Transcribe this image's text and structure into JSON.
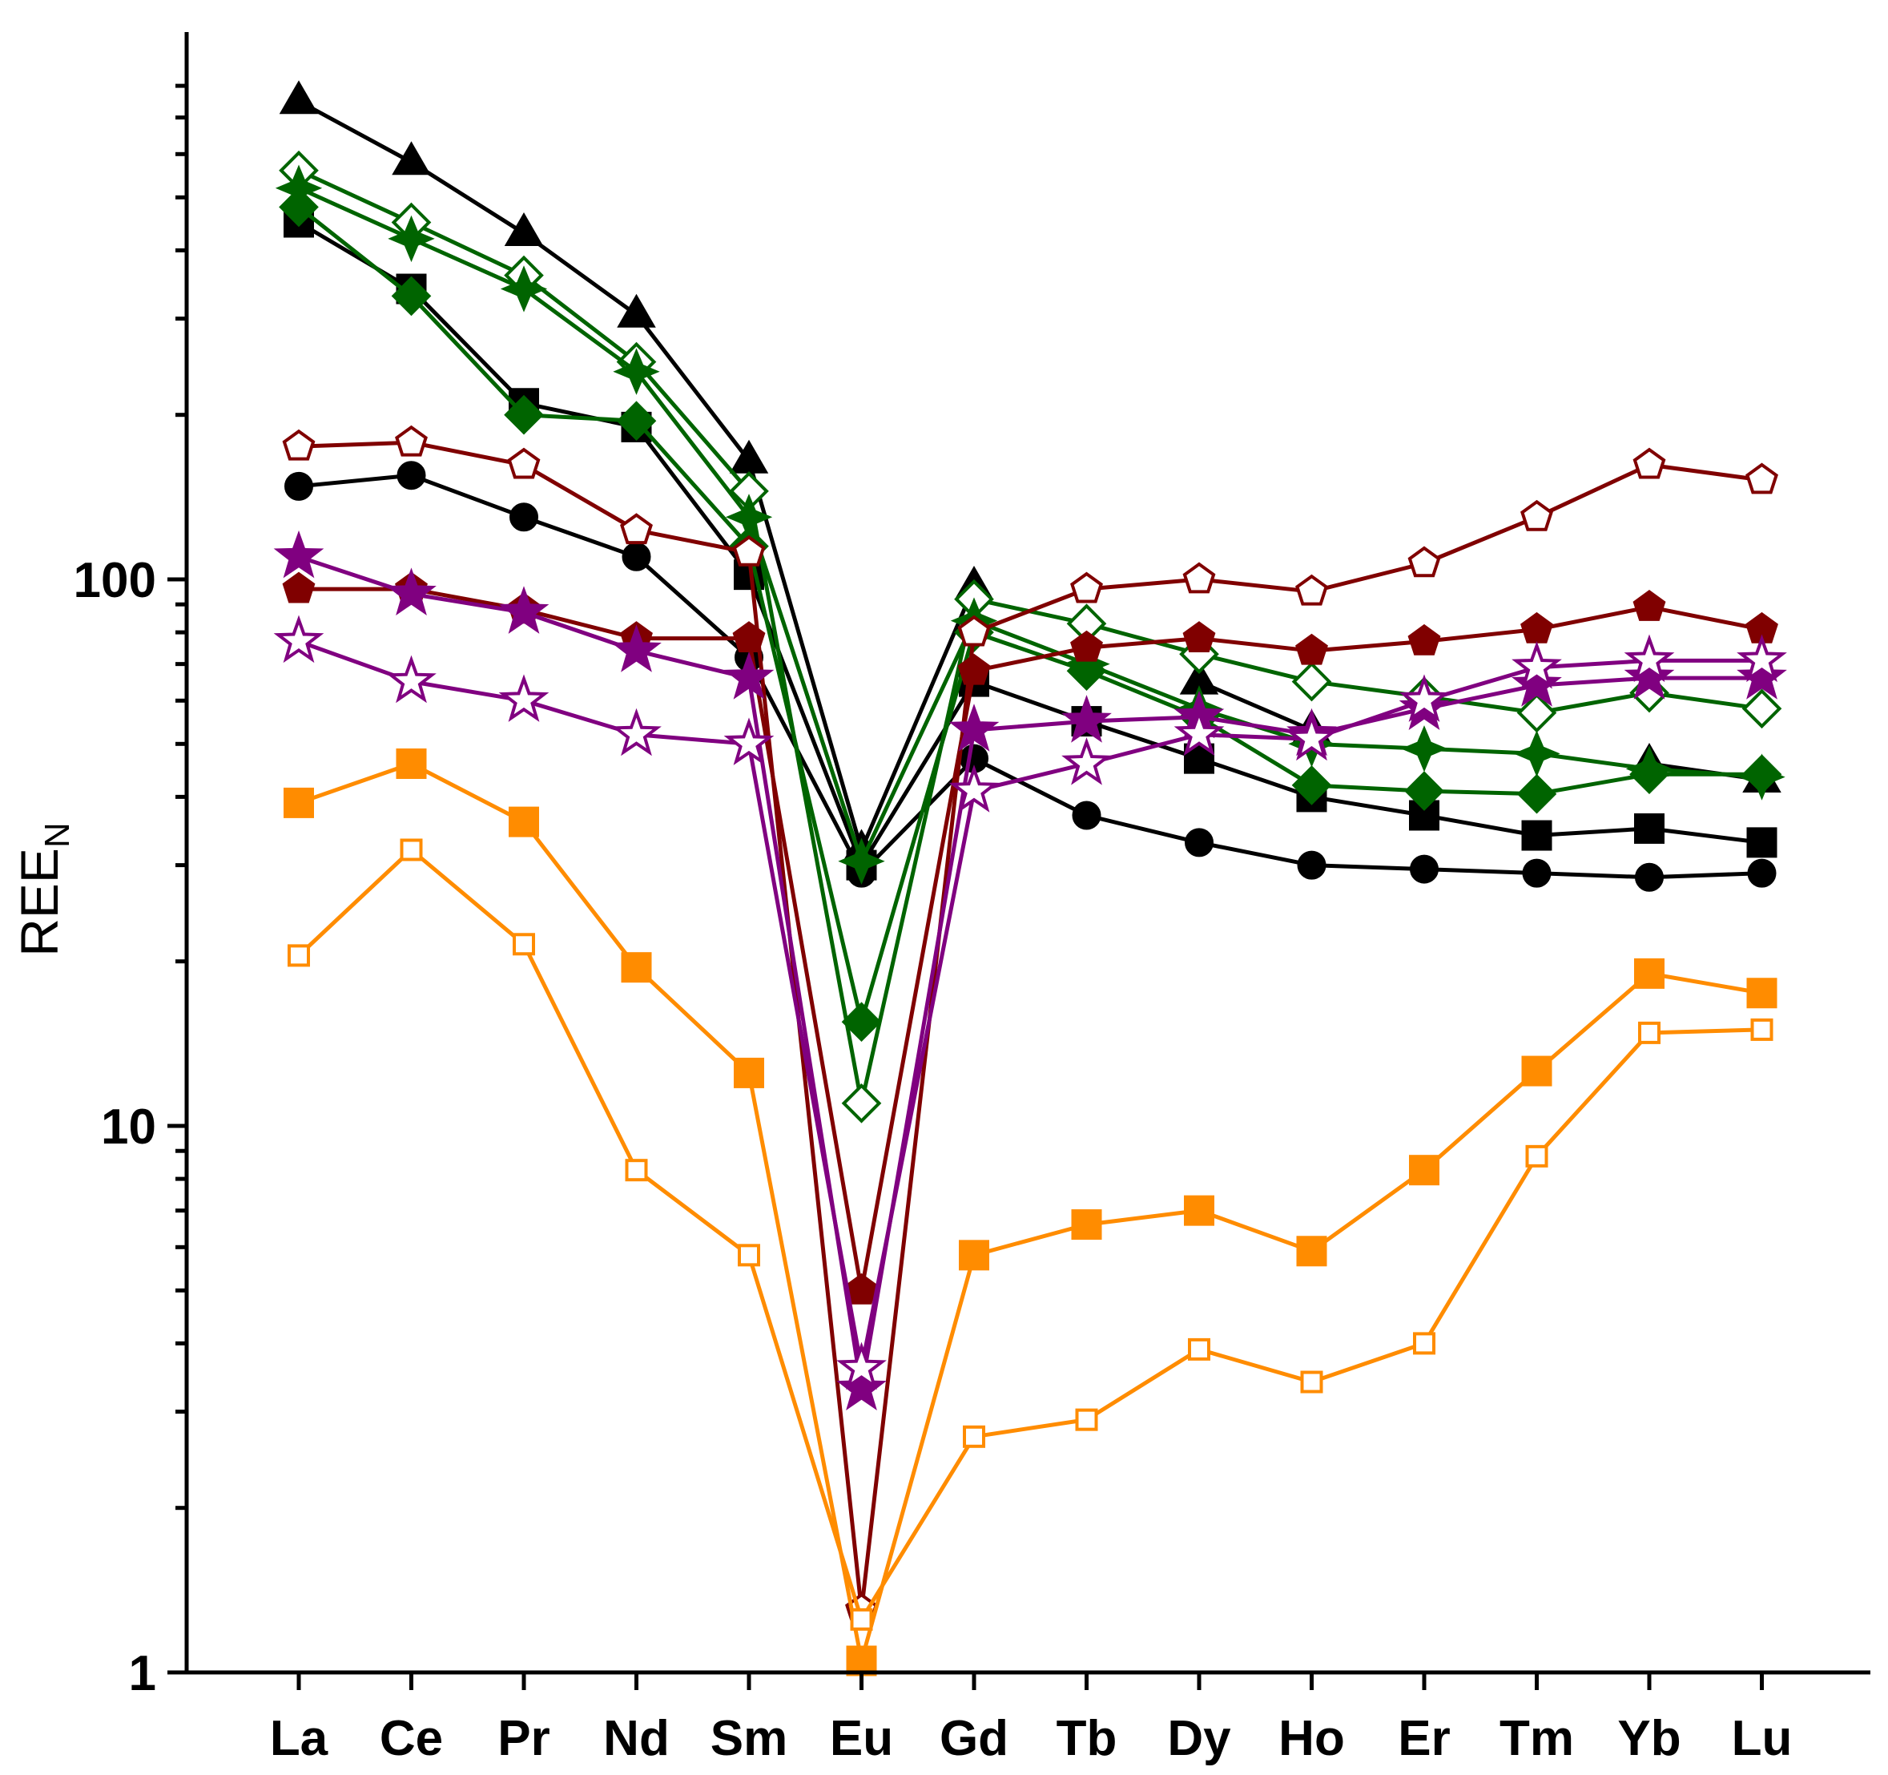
{
  "chart_data": {
    "type": "line",
    "ylabel": "REE",
    "ylabel_subscript": "N",
    "xlabel": "",
    "y_scale": "log",
    "ylim": [
      1,
      800
    ],
    "y_ticks": [
      {
        "value": 1,
        "label": "1"
      },
      {
        "value": 10,
        "label": "10"
      },
      {
        "value": 100,
        "label": "100"
      }
    ],
    "grid": false,
    "legend": "none",
    "categories": [
      "La",
      "Ce",
      "Pr",
      "Nd",
      "Sm",
      "Eu",
      "Gd",
      "Tb",
      "Dy",
      "Ho",
      "Er",
      "Tm",
      "Yb",
      "Lu"
    ],
    "series": [
      {
        "color": "#000000",
        "marker": "triangle",
        "filled": true,
        "values": [
          750,
          580,
          430,
          305,
          165,
          32,
          97,
          null,
          65,
          53,
          null,
          null,
          46,
          43
        ]
      },
      {
        "color": "#000000",
        "marker": "square",
        "filled": true,
        "values": [
          450,
          340,
          210,
          190,
          102,
          30,
          65,
          55,
          47,
          40,
          37,
          34,
          35,
          33
        ]
      },
      {
        "color": "#000000",
        "marker": "circle",
        "filled": true,
        "values": [
          148,
          155,
          130,
          110,
          72,
          29,
          47,
          37,
          33,
          30,
          29.5,
          29,
          28.5,
          29
        ]
      },
      {
        "color": "#006400",
        "marker": "diamond",
        "filled": false,
        "values": [
          560,
          450,
          360,
          250,
          145,
          11,
          92,
          83,
          73,
          65,
          61,
          57,
          62,
          58
        ]
      },
      {
        "color": "#006400",
        "marker": "diamond",
        "filled": true,
        "values": [
          480,
          330,
          200,
          195,
          115,
          15.5,
          80,
          68,
          56,
          42,
          41,
          40.5,
          44,
          44
        ]
      },
      {
        "color": "#006400",
        "marker": "star4",
        "filled": true,
        "values": [
          520,
          420,
          340,
          240,
          130,
          30.5,
          84,
          70,
          58,
          50,
          49,
          48,
          45,
          43.5
        ]
      },
      {
        "color": "#800000",
        "marker": "pentagon",
        "filled": false,
        "values": [
          175,
          178,
          162,
          123,
          112,
          1.3,
          80,
          96,
          100,
          95,
          107,
          130,
          162,
          152
        ]
      },
      {
        "color": "#800000",
        "marker": "pentagon",
        "filled": true,
        "values": [
          96,
          96,
          88,
          78,
          78,
          5,
          68,
          75,
          78,
          74,
          77,
          81,
          89,
          81
        ]
      },
      {
        "color": "#800080",
        "marker": "star",
        "filled": true,
        "values": [
          110,
          94,
          87,
          74,
          66,
          3.3,
          53,
          55,
          56,
          52,
          58,
          64,
          66,
          66
        ]
      },
      {
        "color": "#800080",
        "marker": "star",
        "filled": false,
        "values": [
          77,
          65,
          60,
          52,
          50,
          3.6,
          41,
          46,
          52,
          51,
          60,
          69,
          71,
          71
        ]
      },
      {
        "color": "#FF8C00",
        "marker": "square",
        "filled": true,
        "values": [
          39,
          46,
          36,
          19.5,
          12.5,
          1.05,
          5.8,
          6.6,
          7,
          5.9,
          8.3,
          12.6,
          19,
          17.5
        ]
      },
      {
        "color": "#FF8C00",
        "marker": "square",
        "filled": false,
        "values": [
          20.5,
          32,
          21.5,
          8.3,
          5.8,
          1.25,
          2.7,
          2.9,
          3.9,
          3.4,
          4,
          8.8,
          14.8,
          15
        ]
      }
    ]
  }
}
